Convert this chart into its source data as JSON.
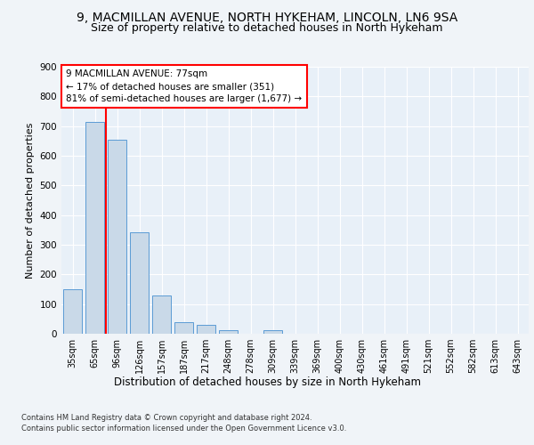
{
  "title1": "9, MACMILLAN AVENUE, NORTH HYKEHAM, LINCOLN, LN6 9SA",
  "title2": "Size of property relative to detached houses in North Hykeham",
  "xlabel": "Distribution of detached houses by size in North Hykeham",
  "ylabel": "Number of detached properties",
  "footer1": "Contains HM Land Registry data © Crown copyright and database right 2024.",
  "footer2": "Contains public sector information licensed under the Open Government Licence v3.0.",
  "categories": [
    "35sqm",
    "65sqm",
    "96sqm",
    "126sqm",
    "157sqm",
    "187sqm",
    "217sqm",
    "248sqm",
    "278sqm",
    "309sqm",
    "339sqm",
    "369sqm",
    "400sqm",
    "430sqm",
    "461sqm",
    "491sqm",
    "521sqm",
    "552sqm",
    "582sqm",
    "613sqm",
    "643sqm"
  ],
  "values": [
    150,
    714,
    655,
    343,
    130,
    40,
    30,
    12,
    0,
    12,
    0,
    0,
    0,
    0,
    0,
    0,
    0,
    0,
    0,
    0,
    0
  ],
  "bar_color": "#c9d9e8",
  "bar_edge_color": "#5b9bd5",
  "bar_width": 0.85,
  "red_line_x": 1.5,
  "annotation_text1": "9 MACMILLAN AVENUE: 77sqm",
  "annotation_text2": "← 17% of detached houses are smaller (351)",
  "annotation_text3": "81% of semi-detached houses are larger (1,677) →",
  "ylim": [
    0,
    900
  ],
  "yticks": [
    0,
    100,
    200,
    300,
    400,
    500,
    600,
    700,
    800,
    900
  ],
  "bg_color": "#e8f0f8",
  "fig_bg_color": "#f0f4f8",
  "grid_color": "#ffffff",
  "title_fontsize": 10,
  "subtitle_fontsize": 9,
  "ylabel_fontsize": 8,
  "xlabel_fontsize": 8.5,
  "tick_fontsize": 7,
  "footer_fontsize": 6,
  "annot_fontsize": 7.5
}
